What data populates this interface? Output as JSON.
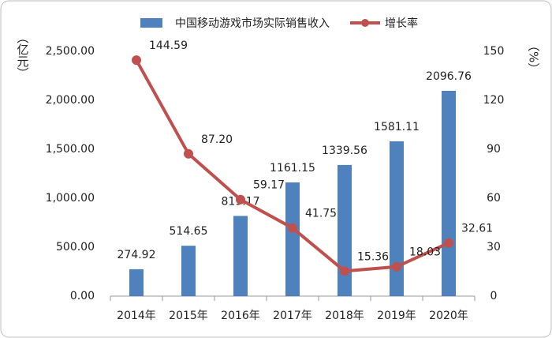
{
  "chart_data": {
    "type": "bar",
    "categories": [
      "2014年",
      "2015年",
      "2016年",
      "2017年",
      "2018年",
      "2019年",
      "2020年"
    ],
    "series": [
      {
        "name": "中国移动游戏市场实际销售收入",
        "type": "bar",
        "color": "#4f81bd",
        "values": [
          274.92,
          514.65,
          819.17,
          1161.15,
          1339.56,
          1581.11,
          2096.76
        ]
      },
      {
        "name": "增长率",
        "type": "line",
        "axis": "y2",
        "color": "#c0504d",
        "values": [
          144.59,
          87.2,
          59.17,
          41.75,
          15.36,
          18.03,
          32.61
        ],
        "value_labels": [
          "144.59",
          "87.20",
          "59.17",
          "41.75",
          "15.36",
          "18.03",
          "32.61"
        ]
      }
    ],
    "y_label": "（亿元）",
    "y2_label": "（%）",
    "ylim": [
      0,
      2500
    ],
    "yticks": [
      {
        "value": 0,
        "label": "0.00"
      },
      {
        "value": 500,
        "label": "500.00"
      },
      {
        "value": 1000,
        "label": "1,000.00"
      },
      {
        "value": 1500,
        "label": "1,500.00"
      },
      {
        "value": 2000,
        "label": "2,000.00"
      },
      {
        "value": 2500,
        "label": "2,500.00"
      }
    ],
    "y2lim": [
      0,
      150
    ],
    "y2ticks": [
      0,
      30,
      60,
      90,
      120,
      150
    ],
    "legend": "top"
  }
}
